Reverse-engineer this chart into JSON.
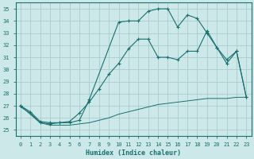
{
  "xlabel": "Humidex (Indice chaleur)",
  "background_color": "#cce8e8",
  "grid_color": "#aacccc",
  "line_color": "#1a7070",
  "xlim": [
    -0.5,
    23.5
  ],
  "ylim": [
    24.5,
    35.5
  ],
  "yticks": [
    25,
    26,
    27,
    28,
    29,
    30,
    31,
    32,
    33,
    34,
    35
  ],
  "xticks": [
    0,
    1,
    2,
    3,
    4,
    5,
    6,
    7,
    8,
    9,
    10,
    11,
    12,
    13,
    14,
    15,
    16,
    17,
    18,
    19,
    20,
    21,
    22,
    23
  ],
  "series": [
    {
      "x": [
        0,
        1,
        2,
        3,
        4,
        5,
        6,
        7,
        10,
        11,
        12,
        13,
        14,
        15,
        16,
        17,
        18,
        19,
        20,
        21,
        22,
        23
      ],
      "y": [
        27.0,
        26.5,
        25.7,
        25.6,
        25.6,
        25.6,
        25.8,
        27.5,
        33.9,
        34.0,
        34.0,
        34.8,
        35.0,
        35.0,
        33.5,
        34.5,
        34.2,
        33.0,
        31.8,
        30.8,
        31.5,
        27.7
      ],
      "marker": true,
      "linestyle": "-"
    },
    {
      "x": [
        0,
        2,
        3,
        4,
        5,
        6,
        7,
        8,
        9,
        10,
        11,
        12,
        13,
        14,
        15,
        16,
        17,
        18,
        19,
        20,
        21,
        22,
        23
      ],
      "y": [
        27.0,
        25.6,
        25.5,
        25.6,
        25.7,
        26.4,
        27.3,
        28.4,
        29.6,
        30.5,
        31.7,
        32.5,
        32.5,
        31.0,
        31.0,
        30.8,
        31.5,
        31.5,
        33.2,
        31.8,
        30.5,
        31.5,
        27.7
      ],
      "marker": true,
      "linestyle": "-"
    },
    {
      "x": [
        0,
        1,
        2,
        3,
        4,
        5,
        6,
        7,
        8,
        9,
        10,
        11,
        12,
        13,
        14,
        15,
        16,
        17,
        18,
        19,
        20,
        21,
        22,
        23
      ],
      "y": [
        26.9,
        26.4,
        25.6,
        25.4,
        25.4,
        25.4,
        25.5,
        25.6,
        25.8,
        26.0,
        26.3,
        26.5,
        26.7,
        26.9,
        27.1,
        27.2,
        27.3,
        27.4,
        27.5,
        27.6,
        27.6,
        27.6,
        27.7,
        27.7
      ],
      "marker": false,
      "linestyle": "-"
    }
  ]
}
